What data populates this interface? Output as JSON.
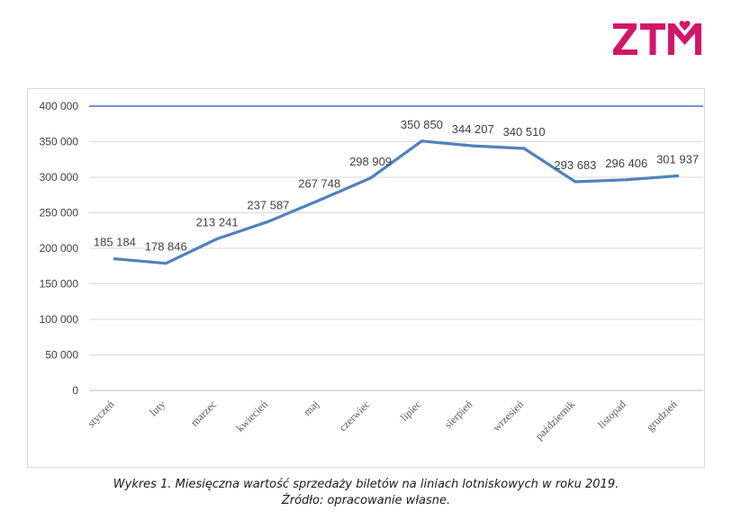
{
  "logo": {
    "text": "ZTM",
    "color": "#d2166b"
  },
  "caption": {
    "line1": "Wykres 1. Miesięczna wartość sprzedaży biletów na liniach lotniskowych w roku 2019.",
    "line2": "Źródło: opracowanie własne."
  },
  "chart_data": {
    "type": "line",
    "title": "",
    "xlabel": "",
    "ylabel": "",
    "ylim": [
      0,
      400000
    ],
    "yticks": [
      0,
      50000,
      100000,
      150000,
      200000,
      250000,
      300000,
      350000,
      400000
    ],
    "ytick_labels": [
      "0",
      "50 000",
      "100 000",
      "150 000",
      "200 000",
      "250 000",
      "300 000",
      "350 000",
      "400 000"
    ],
    "categories": [
      "styczeń",
      "luty",
      "marzec",
      "kwiecień",
      "maj",
      "czerwiec",
      "lipiec",
      "sierpień",
      "wrzesień",
      "październik",
      "listopad",
      "grudzień"
    ],
    "series": [
      {
        "values": [
          185184,
          178846,
          213241,
          237587,
          267748,
          298909,
          350850,
          344207,
          340510,
          293683,
          296406,
          301937
        ],
        "labels": [
          "185 184",
          "178 846",
          "213 241",
          "237 587",
          "267 748",
          "298 909",
          "350 850",
          "344 207",
          "340 510",
          "293 683",
          "296 406",
          "301 937"
        ],
        "color": "#4f81bd"
      }
    ],
    "grid": true,
    "gridColor": "#d9d9d9",
    "axisColor": "#4472c4",
    "legend": "none"
  }
}
